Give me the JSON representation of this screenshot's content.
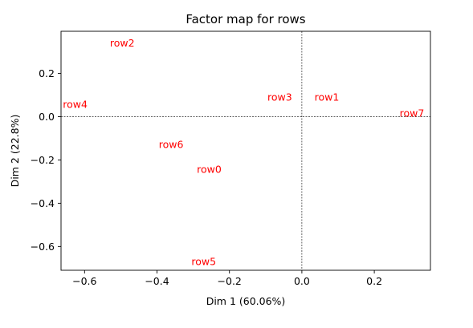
{
  "chart_data": {
    "type": "scatter",
    "title": "Factor map for rows",
    "xlabel": "Dim 1 (60.06%)",
    "ylabel": "Dim 2 (22.8%)",
    "xlim": [
      -0.665,
      0.355
    ],
    "ylim": [
      -0.71,
      0.395
    ],
    "xticks": [
      -0.6,
      -0.4,
      -0.2,
      0.0,
      0.2
    ],
    "xtick_labels": [
      "−0.6",
      "−0.4",
      "−0.2",
      "0.0",
      "0.2"
    ],
    "yticks": [
      -0.6,
      -0.4,
      -0.2,
      0.0,
      0.2
    ],
    "ytick_labels": [
      "−0.6",
      "−0.4",
      "−0.2",
      "0.0",
      "0.2"
    ],
    "grid": false,
    "reference_lines": {
      "x": 0.0,
      "y": 0.0,
      "style": "dashed"
    },
    "point_color": "#ff0000",
    "points": [
      {
        "label": "row0",
        "x": -0.29,
        "y": -0.26
      },
      {
        "label": "row1",
        "x": 0.035,
        "y": 0.075
      },
      {
        "label": "row2",
        "x": -0.53,
        "y": 0.325
      },
      {
        "label": "row3",
        "x": -0.095,
        "y": 0.075
      },
      {
        "label": "row4",
        "x": -0.66,
        "y": 0.04
      },
      {
        "label": "row5",
        "x": -0.305,
        "y": -0.685
      },
      {
        "label": "row6",
        "x": -0.395,
        "y": -0.145
      },
      {
        "label": "row7",
        "x": 0.27,
        "y": 0.0
      }
    ]
  }
}
